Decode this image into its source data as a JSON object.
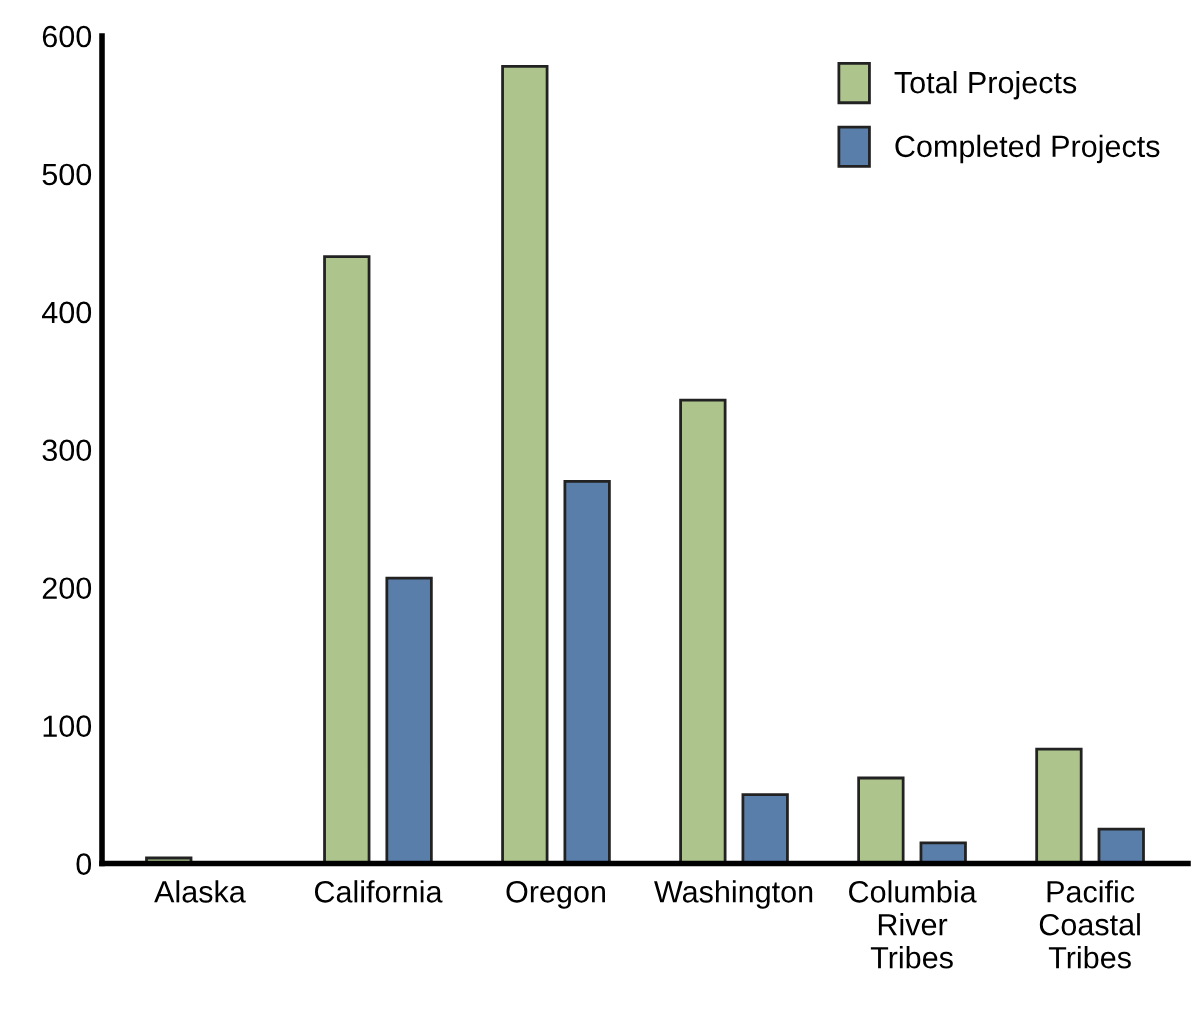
{
  "chart_data": {
    "type": "bar",
    "categories": [
      "Alaska",
      "California",
      "Oregon",
      "Washington",
      "Columbia River Tribes",
      "Pacific Coastal Tribes"
    ],
    "series": [
      {
        "name": "Total Projects",
        "color": "#adc48c",
        "values": [
          4,
          440,
          578,
          336,
          62,
          83
        ]
      },
      {
        "name": "Completed Projects",
        "color": "#5a7eaa",
        "values": [
          null,
          207,
          277,
          50,
          15,
          25
        ]
      }
    ],
    "ylim": [
      0,
      600
    ],
    "yticks": [
      0,
      100,
      200,
      300,
      400,
      500,
      600
    ],
    "grid": false,
    "legend": "top right"
  }
}
